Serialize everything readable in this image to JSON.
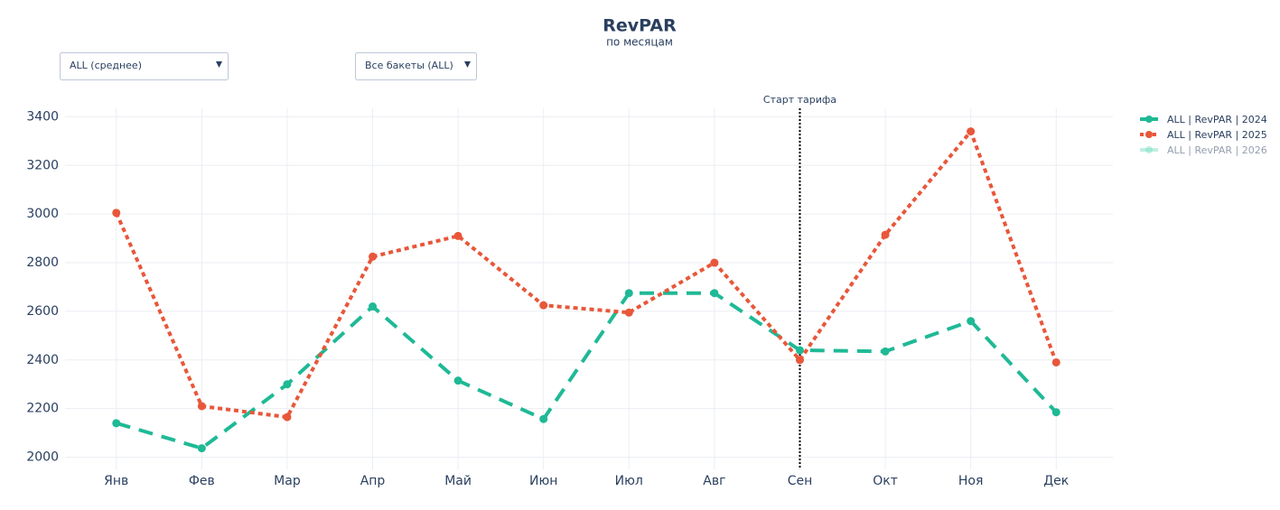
{
  "dropdowns": [
    "ALL (среднее)",
    "Все бакеты (ALL)"
  ],
  "chart_data": {
    "type": "line",
    "title": "RevPAR",
    "subtitle": "по месяцам",
    "categories": [
      "Янв",
      "Фев",
      "Мар",
      "Апр",
      "Май",
      "Июн",
      "Июл",
      "Авг",
      "Сен",
      "Окт",
      "Ноя",
      "Дек"
    ],
    "series": [
      {
        "name": "ALL | RevPAR | 2024",
        "color": "#1fb996",
        "dash": "dash",
        "values": [
          2140,
          2037,
          2300,
          2620,
          2315,
          2157,
          2675,
          2675,
          2440,
          2435,
          2560,
          2185
        ]
      },
      {
        "name": "ALL | RevPAR | 2025",
        "color": "#e8573a",
        "dash": "dot",
        "values": [
          3005,
          2210,
          2165,
          2825,
          2910,
          2625,
          2595,
          2800,
          2400,
          2915,
          3340,
          2390
        ]
      },
      {
        "name": "ALL | RevPAR | 2026",
        "color": "#7fe0c4",
        "dash": "solid",
        "hidden": true,
        "values": [
          null,
          null,
          null,
          null,
          null,
          null,
          null,
          null,
          null,
          null,
          null,
          null
        ]
      }
    ],
    "annotation": {
      "text": "Старт тарифа",
      "x": "Сен"
    },
    "ylim": [
      1950,
      3435
    ],
    "yticks": [
      2000,
      2200,
      2400,
      2600,
      2800,
      3000,
      3200,
      3400
    ],
    "grid": true,
    "legend": "right"
  }
}
